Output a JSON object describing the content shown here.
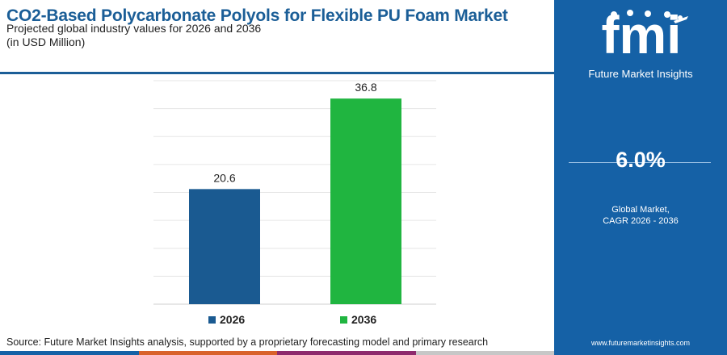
{
  "header": {
    "title": "CO2-Based Polycarbonate Polyols for Flexible PU Foam Market",
    "subtitle": "Projected global industry values for 2026 and 2036",
    "unit": "(in USD Million)"
  },
  "chart_data": {
    "type": "bar",
    "categories": [
      "2026",
      "2036"
    ],
    "values": [
      20.6,
      36.8
    ],
    "value_labels": [
      "20.6",
      "36.8"
    ],
    "colors": [
      "#1a5a91",
      "#20b540"
    ],
    "ylim": [
      0,
      40
    ],
    "grid": true,
    "legend": "bottom"
  },
  "legend": [
    {
      "label": "2026",
      "color": "#1a5a91"
    },
    {
      "label": "2036",
      "color": "#20b540"
    }
  ],
  "source": "Source: Future Market Insights analysis, supported by a proprietary forecasting model and primary research",
  "sidebar": {
    "logo_text": "fmi",
    "logo_subtitle": "Future Market Insights",
    "cagr_value": "6.0%",
    "cagr_label_1": "Global Market,",
    "cagr_label_2": "CAGR 2026 - 2036",
    "website": "www.futuremarketinsights.com",
    "background_color": "#1561a6"
  },
  "bottom_strip_colors": [
    "#1561a6",
    "#d9622b",
    "#8e2a6d",
    "#c7c7c7"
  ]
}
